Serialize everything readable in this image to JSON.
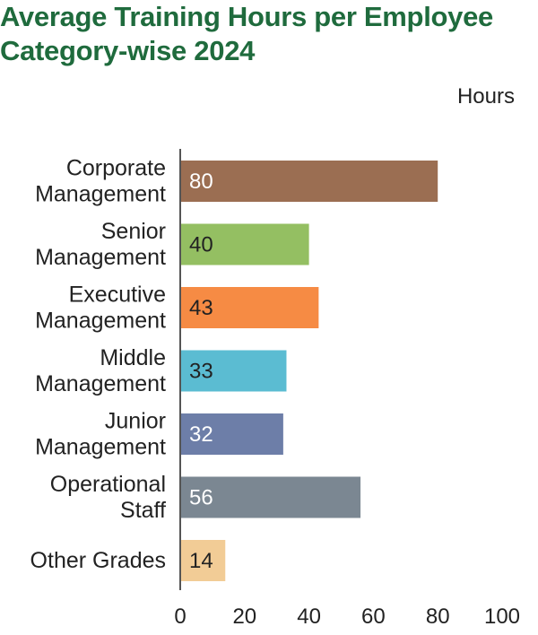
{
  "chart_data": {
    "type": "bar",
    "orientation": "horizontal",
    "title": "Average Training Hours per Employee Category-wise 2024",
    "units_label": "Hours",
    "categories": [
      [
        "Corporate",
        "Management"
      ],
      [
        "Senior",
        "Management"
      ],
      [
        "Executive",
        "Management"
      ],
      [
        "Middle",
        "Management"
      ],
      [
        "Junior",
        "Management"
      ],
      [
        "Operational",
        "Staff"
      ],
      [
        "Other Grades"
      ]
    ],
    "values": [
      80,
      40,
      43,
      33,
      32,
      56,
      14
    ],
    "colors": [
      "#9b6e52",
      "#94bf62",
      "#f68b44",
      "#5bbcd2",
      "#6d7ea8",
      "#7b8792",
      "#f2cc96"
    ],
    "label_colors": [
      "#ffffff",
      "#222222",
      "#222222",
      "#222222",
      "#ffffff",
      "#ffffff",
      "#222222"
    ],
    "xlim": [
      0,
      100
    ],
    "xticks": [
      0,
      20,
      40,
      60,
      80,
      100
    ],
    "grid": false,
    "legend": "none"
  }
}
